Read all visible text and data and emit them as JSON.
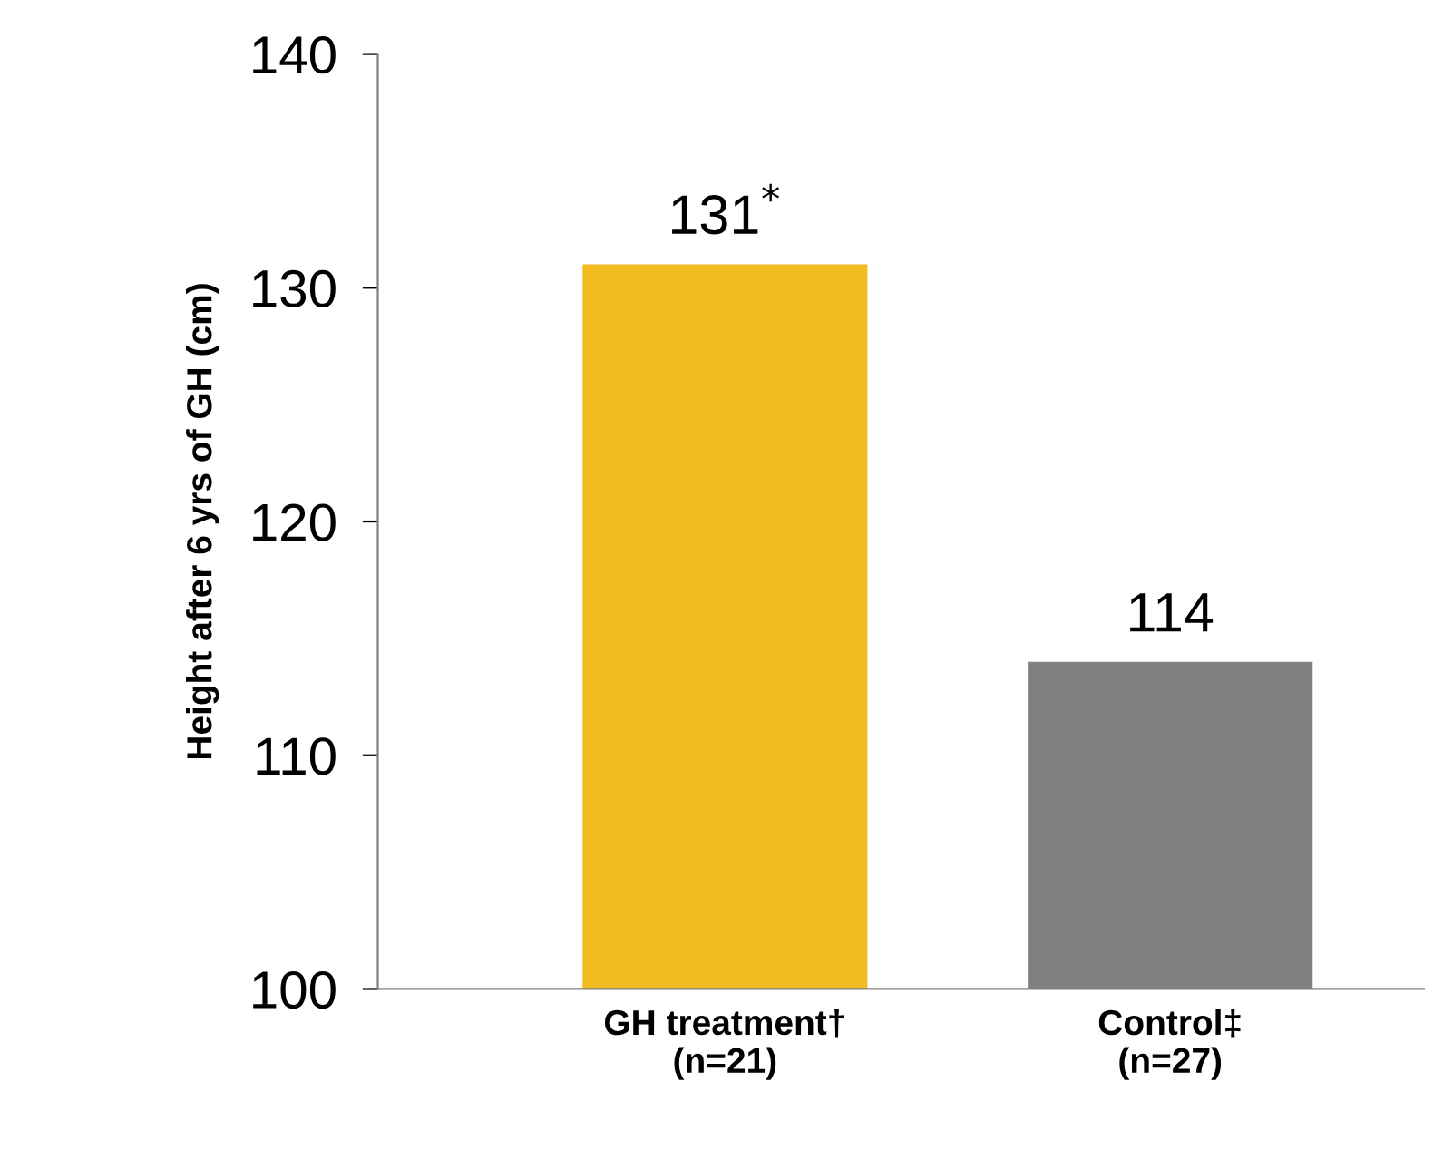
{
  "chart_data": {
    "type": "bar",
    "ylabel": "Height after 6 yrs of GH (cm)",
    "categories": [
      "GH treatment†\n(n=21)",
      "Control‡\n(n=27)"
    ],
    "values": [
      131,
      114
    ],
    "colors": [
      "#f2bb21",
      "#808080"
    ],
    "value_labels": [
      "131$^{*}$",
      "114"
    ],
    "ylim": [
      100,
      140
    ],
    "yticks": [
      100,
      110,
      120,
      130,
      140
    ],
    "grid": false,
    "legend": false
  }
}
